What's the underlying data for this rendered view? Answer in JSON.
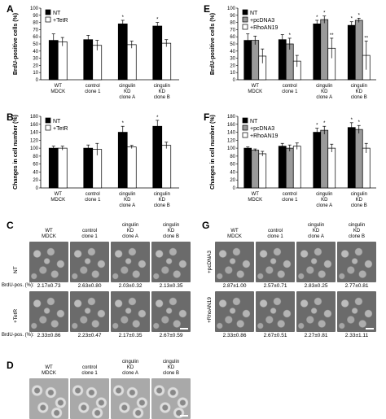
{
  "colors": {
    "nt": "#000000",
    "tetr": "#ffffff",
    "pcdna3": "#9a9a9a",
    "rhoan19": "#ffffff",
    "stroke": "#000000"
  },
  "chart_data": [
    {
      "id": "A",
      "type": "bar",
      "ylabel": "BrdU-positive cells (%)",
      "ylim": [
        0,
        100
      ],
      "yticks": [
        0,
        10,
        20,
        30,
        40,
        50,
        60,
        70,
        80,
        90,
        100
      ],
      "categories": [
        [
          "WT",
          "MDCK"
        ],
        [
          "control",
          "clone 1"
        ],
        [
          "cingulin",
          "KD",
          "clone A"
        ],
        [
          "cingulin",
          "KD",
          "clone B"
        ]
      ],
      "series": [
        {
          "name": "NT",
          "color": "#000000",
          "values": [
            55,
            56,
            78,
            75
          ],
          "errors": [
            9,
            6,
            5,
            5
          ]
        },
        {
          "name": "+TetR",
          "color": "#ffffff",
          "values": [
            53,
            48,
            49,
            51
          ],
          "errors": [
            6,
            7,
            5,
            5
          ]
        }
      ],
      "significance": [
        "",
        "",
        "*",
        "*"
      ]
    },
    {
      "id": "B",
      "type": "bar",
      "ylabel": "Changes in cell number (%)",
      "ylim": [
        0,
        180
      ],
      "yticks": [
        0,
        20,
        40,
        60,
        80,
        100,
        120,
        140,
        160,
        180
      ],
      "categories": [
        [
          "WT",
          "MDCK"
        ],
        [
          "control",
          "clone 1"
        ],
        [
          "cingulin",
          "KD",
          "clone A"
        ],
        [
          "cingulin",
          "KD",
          "clone B"
        ]
      ],
      "series": [
        {
          "name": "NT",
          "color": "#000000",
          "values": [
            100,
            100,
            140,
            155
          ],
          "errors": [
            5,
            8,
            15,
            15
          ]
        },
        {
          "name": "+TetR",
          "color": "#ffffff",
          "values": [
            100,
            97,
            103,
            107
          ],
          "errors": [
            5,
            15,
            4,
            8
          ]
        }
      ],
      "significance": [
        "",
        "",
        "*",
        "*"
      ]
    },
    {
      "id": "E",
      "type": "bar",
      "ylabel": "BrdU-positive cells (%)",
      "ylim": [
        0,
        100
      ],
      "yticks": [
        0,
        10,
        20,
        30,
        40,
        50,
        60,
        70,
        80,
        90,
        100
      ],
      "categories": [
        [
          "WT",
          "MDCK"
        ],
        [
          "control",
          "clone 1"
        ],
        [
          "cingulin",
          "KD",
          "clone A"
        ],
        [
          "cingulin",
          "KD",
          "clone B"
        ]
      ],
      "series": [
        {
          "name": "NT",
          "color": "#000000",
          "values": [
            55,
            56,
            78,
            76
          ],
          "errors": [
            9,
            7,
            5,
            5
          ]
        },
        {
          "name": "+pcDNA3",
          "color": "#9a9a9a",
          "values": [
            55,
            50,
            84,
            83
          ],
          "errors": [
            6,
            8,
            5,
            3
          ]
        },
        {
          "name": "+RhoAN19",
          "color": "#ffffff",
          "values": [
            33,
            26,
            44,
            34
          ],
          "errors": [
            10,
            8,
            14,
            20
          ]
        }
      ],
      "significance": [
        [
          "",
          "",
          ""
        ],
        [
          "",
          "*",
          ""
        ],
        [
          "*",
          "*",
          "**"
        ],
        [
          "*",
          "*",
          "**"
        ]
      ]
    },
    {
      "id": "F",
      "type": "bar",
      "ylabel": "Changes in cell number (%)",
      "ylim": [
        0,
        180
      ],
      "yticks": [
        0,
        20,
        40,
        60,
        80,
        100,
        120,
        140,
        160,
        180
      ],
      "categories": [
        [
          "WT",
          "MDCK"
        ],
        [
          "control",
          "clone 1"
        ],
        [
          "cingulin",
          "KD",
          "clone A"
        ],
        [
          "cingulin",
          "KD",
          "clone B"
        ]
      ],
      "series": [
        {
          "name": "NT",
          "color": "#000000",
          "values": [
            100,
            105,
            140,
            152
          ],
          "errors": [
            3,
            7,
            10,
            12
          ]
        },
        {
          "name": "+pcDNA3",
          "color": "#9a9a9a",
          "values": [
            95,
            100,
            145,
            147
          ],
          "errors": [
            3,
            8,
            10,
            10
          ]
        },
        {
          "name": "+RhoAN19",
          "color": "#ffffff",
          "values": [
            86,
            105,
            100,
            100
          ],
          "errors": [
            6,
            8,
            10,
            12
          ]
        }
      ],
      "significance": [
        [
          "",
          "",
          ""
        ],
        [
          "",
          "",
          ""
        ],
        [
          "*",
          "*",
          ""
        ],
        [
          "*",
          "*",
          ""
        ]
      ]
    }
  ],
  "panelC": {
    "letter": "C",
    "columns": [
      [
        "WT",
        "MDCK"
      ],
      [
        "control",
        "clone 1"
      ],
      [
        "cingulin",
        "KD",
        "clone A"
      ],
      [
        "cingulin",
        "KD",
        "clone B"
      ]
    ],
    "rows": [
      {
        "label": "NT",
        "values": [
          "2.17±0.73",
          "2.63±0.80",
          "2.03±0.32",
          "2.13±0.35"
        ]
      },
      {
        "label": "+TetR",
        "values": [
          "2.33±0.86",
          "2.23±0.47",
          "2.17±0.35",
          "2.67±0.59"
        ]
      }
    ],
    "pct_label": "BrdU-pos. (%):"
  },
  "panelD": {
    "letter": "D",
    "columns": [
      [
        "WT",
        "MDCK"
      ],
      [
        "control",
        "clone 1"
      ],
      [
        "cingulin",
        "KD",
        "clone A"
      ],
      [
        "cingulin",
        "KD",
        "clone B"
      ]
    ]
  },
  "panelG": {
    "letter": "G",
    "columns": [
      [
        "WT",
        "MDCK"
      ],
      [
        "control",
        "clone 1"
      ],
      [
        "cingulin",
        "KD",
        "clone A"
      ],
      [
        "cingulin",
        "KD",
        "clone B"
      ]
    ],
    "rows": [
      {
        "label": "+pcDNA3",
        "values": [
          "2.87±1.00",
          "2.57±0.71",
          "2.83±0.25",
          "2.77±0.81"
        ]
      },
      {
        "label": "+RhoAN19",
        "values": [
          "2.33±0.86",
          "2.67±0.51",
          "2.27±0.81",
          "2.33±1.11"
        ]
      }
    ]
  }
}
